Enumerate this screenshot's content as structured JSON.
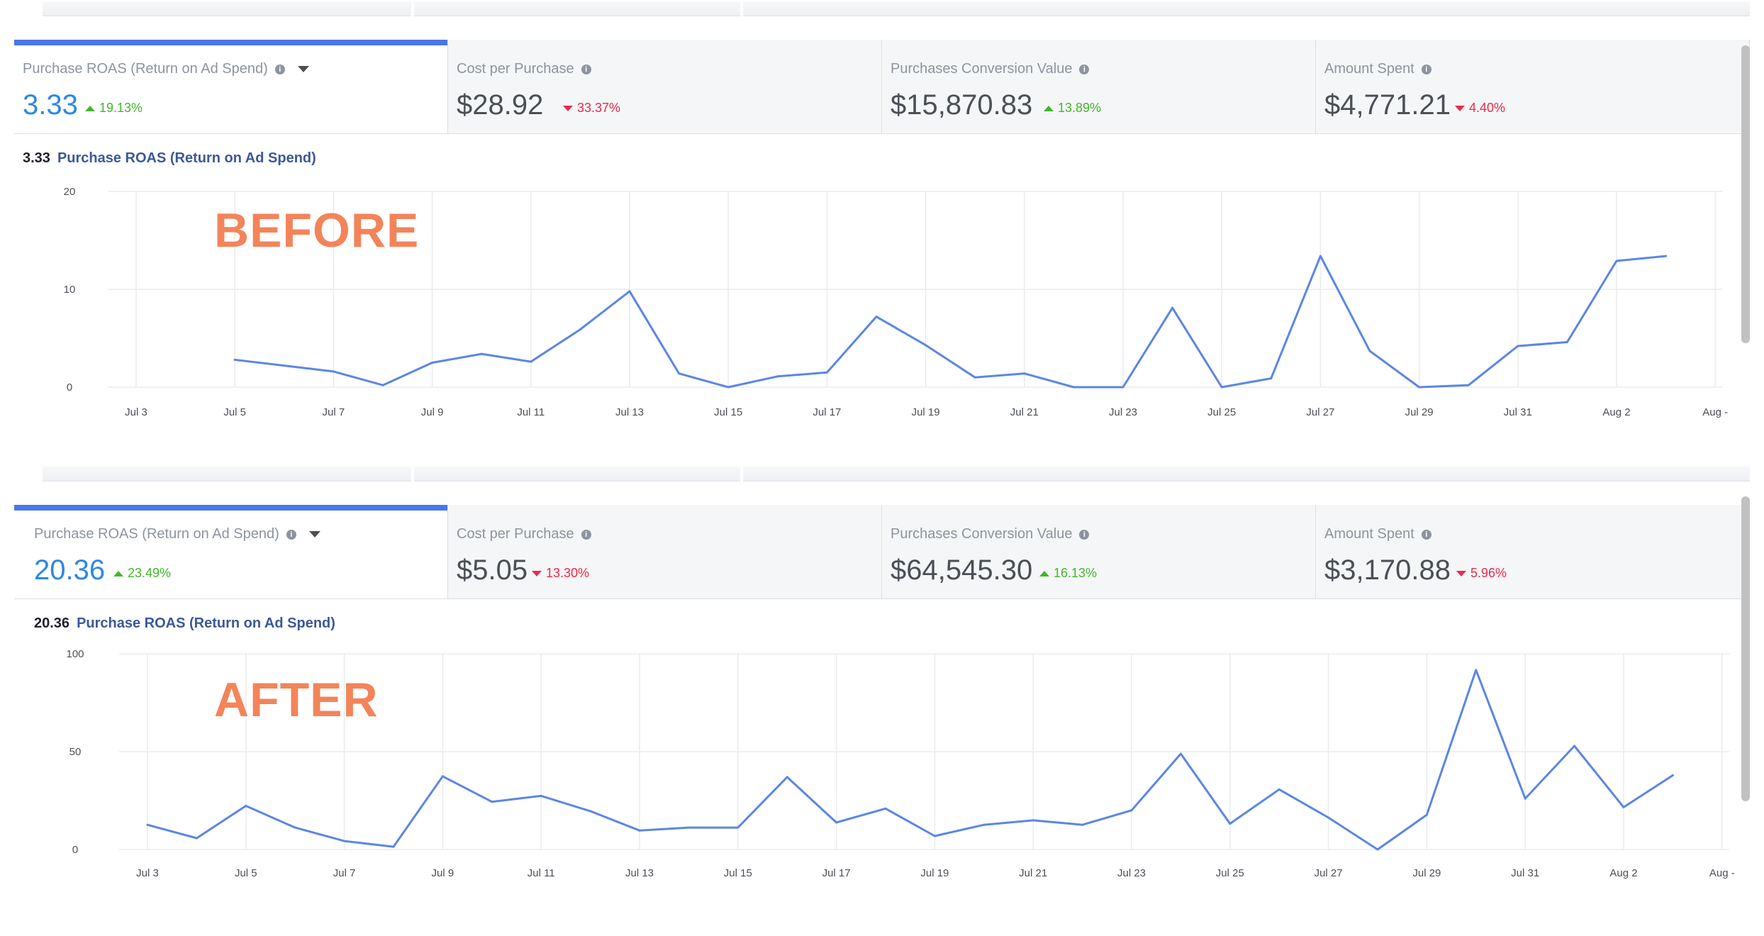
{
  "colors": {
    "accent": "#4a76e8",
    "value_active": "#2d88e2",
    "up": "#42b72a",
    "down": "#f02849",
    "line": "#5b86e5",
    "stamp": "#f3845a"
  },
  "before": {
    "stamp": "BEFORE",
    "metrics": [
      {
        "label": "Purchase ROAS (Return on Ad Spend)",
        "value": "3.33",
        "delta": "19.13%",
        "direction": "up",
        "active": true
      },
      {
        "label": "Cost per Purchase",
        "value": "$28.92",
        "delta": "33.37%",
        "direction": "down",
        "active": false
      },
      {
        "label": "Purchases Conversion Value",
        "value": "$15,870.83",
        "delta": "13.89%",
        "direction": "up",
        "active": false
      },
      {
        "label": "Amount Spent",
        "value": "$4,771.21",
        "delta": "4.40%",
        "direction": "down",
        "active": false
      }
    ],
    "heading_value": "3.33",
    "heading_name": "Purchase ROAS (Return on Ad Spend)"
  },
  "after": {
    "stamp": "AFTER",
    "metrics": [
      {
        "label": "Purchase ROAS (Return on Ad Spend)",
        "value": "20.36",
        "delta": "23.49%",
        "direction": "up",
        "active": true
      },
      {
        "label": "Cost per Purchase",
        "value": "$5.05",
        "delta": "13.30%",
        "direction": "down",
        "active": false
      },
      {
        "label": "Purchases Conversion Value",
        "value": "$64,545.30",
        "delta": "16.13%",
        "direction": "up",
        "active": false
      },
      {
        "label": "Amount Spent",
        "value": "$3,170.88",
        "delta": "5.96%",
        "direction": "down",
        "active": false
      }
    ],
    "heading_value": "20.36",
    "heading_name": "Purchase ROAS (Return on Ad Spend)"
  },
  "chart_data": [
    {
      "type": "line",
      "title": "Purchase ROAS (Return on Ad Spend)",
      "x": [
        "Jul 3",
        "Jul 4",
        "Jul 5",
        "Jul 6",
        "Jul 7",
        "Jul 8",
        "Jul 9",
        "Jul 10",
        "Jul 11",
        "Jul 12",
        "Jul 13",
        "Jul 14",
        "Jul 15",
        "Jul 16",
        "Jul 17",
        "Jul 18",
        "Jul 19",
        "Jul 20",
        "Jul 21",
        "Jul 22",
        "Jul 23",
        "Jul 24",
        "Jul 25",
        "Jul 26",
        "Jul 27",
        "Jul 28",
        "Jul 29",
        "Jul 30",
        "Jul 31",
        "Aug 1",
        "Aug 2",
        "Aug 3"
      ],
      "x_tick_labels": [
        "Jul 3",
        "Jul 5",
        "Jul 7",
        "Jul 9",
        "Jul 11",
        "Jul 13",
        "Jul 15",
        "Jul 17",
        "Jul 19",
        "Jul 21",
        "Jul 23",
        "Jul 25",
        "Jul 27",
        "Jul 29",
        "Jul 31",
        "Aug 2",
        "Aug -"
      ],
      "series": [
        {
          "values": [
            null,
            null,
            2.8,
            2.2,
            1.6,
            0.2,
            2.5,
            3.4,
            2.6,
            5.9,
            9.8,
            1.4,
            0.0,
            1.1,
            1.5,
            7.2,
            4.3,
            1.0,
            1.4,
            0.0,
            0.0,
            8.1,
            0.0,
            0.9,
            13.4,
            3.7,
            0.0,
            0.2,
            4.2,
            4.6,
            12.9,
            13.4
          ]
        }
      ],
      "ylim": [
        0,
        20
      ],
      "yticks": [
        0,
        10,
        20
      ],
      "grid": true
    },
    {
      "type": "line",
      "title": "Purchase ROAS (Return on Ad Spend)",
      "x": [
        "Jul 3",
        "Jul 4",
        "Jul 5",
        "Jul 6",
        "Jul 7",
        "Jul 8",
        "Jul 9",
        "Jul 10",
        "Jul 11",
        "Jul 12",
        "Jul 13",
        "Jul 14",
        "Jul 15",
        "Jul 16",
        "Jul 17",
        "Jul 18",
        "Jul 19",
        "Jul 20",
        "Jul 21",
        "Jul 22",
        "Jul 23",
        "Jul 24",
        "Jul 25",
        "Jul 26",
        "Jul 27",
        "Jul 28",
        "Jul 29",
        "Jul 30",
        "Jul 31",
        "Aug 1",
        "Aug 2",
        "Aug 3"
      ],
      "x_tick_labels": [
        "Jul 3",
        "Jul 5",
        "Jul 7",
        "Jul 9",
        "Jul 11",
        "Jul 13",
        "Jul 15",
        "Jul 17",
        "Jul 19",
        "Jul 21",
        "Jul 23",
        "Jul 25",
        "Jul 27",
        "Jul 29",
        "Jul 31",
        "Aug 2",
        "Aug -"
      ],
      "series": [
        {
          "values": [
            12.6,
            5.8,
            22.3,
            11.2,
            4.3,
            1.4,
            37.4,
            24.4,
            27.4,
            19.6,
            9.7,
            11.2,
            11.2,
            37.0,
            13.8,
            20.9,
            6.9,
            12.6,
            14.9,
            12.6,
            20.0,
            48.9,
            13.2,
            30.7,
            16.3,
            0.0,
            17.7,
            91.7,
            26.0,
            52.9,
            21.6,
            37.9
          ]
        }
      ],
      "ylim": [
        0,
        100
      ],
      "yticks": [
        0,
        50,
        100
      ],
      "grid": true
    }
  ]
}
